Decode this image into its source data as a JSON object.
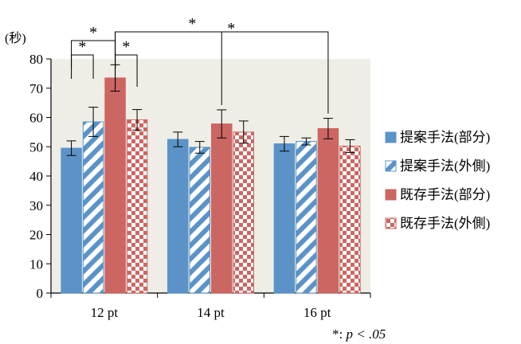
{
  "chart_data": {
    "type": "bar",
    "ylabel": "(秒)",
    "ylim": [
      0,
      80
    ],
    "yticks": [
      0,
      10,
      20,
      30,
      40,
      50,
      60,
      70,
      80
    ],
    "categories": [
      "12 pt",
      "14 pt",
      "16 pt"
    ],
    "grid": false,
    "legend_position": "right",
    "background": "#eeeee6",
    "series": [
      {
        "name": "提案手法(部分)",
        "values": [
          49.5,
          52.5,
          51.0
        ],
        "errors": [
          2.5,
          2.5,
          2.5
        ],
        "color": "#5b93c8",
        "pattern": "solid"
      },
      {
        "name": "提案手法(外側)",
        "values": [
          58.5,
          49.8,
          51.8
        ],
        "errors": [
          5.0,
          2.0,
          1.2
        ],
        "color": "#5b93c8",
        "pattern": "diagonal-stripes"
      },
      {
        "name": "既存手法(部分)",
        "values": [
          73.5,
          57.8,
          56.2
        ],
        "errors": [
          4.5,
          4.8,
          3.5
        ],
        "color": "#cc6662",
        "pattern": "solid"
      },
      {
        "name": "既存手法(外側)",
        "values": [
          59.2,
          55.0,
          50.2
        ],
        "errors": [
          3.5,
          3.8,
          2.2
        ],
        "color": "#cc6662",
        "pattern": "checker"
      }
    ],
    "significance": [
      {
        "from_category": 0,
        "from_series": 0,
        "to_category": 0,
        "to_series": 2,
        "label": "*"
      },
      {
        "from_category": 0,
        "from_series": 0,
        "to_category": 0,
        "to_series": 1,
        "label": "*"
      },
      {
        "from_category": 0,
        "from_series": 2,
        "to_category": 0,
        "to_series": 3,
        "label": "*"
      },
      {
        "from_category": 0,
        "from_series": 2,
        "to_category": 1,
        "to_series": 2,
        "label": "*"
      },
      {
        "from_category": 0,
        "from_series": 2,
        "to_category": 2,
        "to_series": 2,
        "label": "*"
      }
    ],
    "note_prefix": "*: ",
    "note_formula": "p < .05"
  }
}
